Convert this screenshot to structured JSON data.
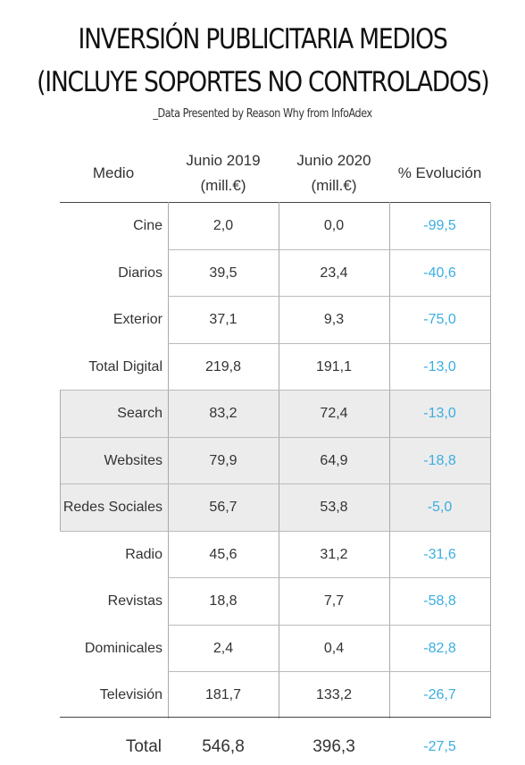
{
  "title_line1": "INVERSIÓN PUBLICITARIA MEDIOS",
  "title_line2": "(INCLUYE SOPORTES NO CONTROLADOS)",
  "subtitle": "_Data Presented by Reason Why from InfoAdex",
  "headers": {
    "medio": "Medio",
    "y2019_line1": "Junio 2019",
    "y2019_line2": "(mill.€)",
    "y2020_line1": "Junio 2020",
    "y2020_line2": "(mill.€)",
    "evolucion": "% Evolución"
  },
  "colors": {
    "evolution": "#3aaee0",
    "shaded_row": "#ececec"
  },
  "chart_data": {
    "type": "table",
    "title": "INVERSIÓN PUBLICITARIA MEDIOS (INCLUYE SOPORTES NO CONTROLADOS)",
    "columns": [
      "Medio",
      "Junio 2019 (mill.€)",
      "Junio 2020 (mill.€)",
      "% Evolución"
    ],
    "rows": [
      {
        "medio": "Cine",
        "v2019": "2,0",
        "v2020": "0,0",
        "evolucion": "-99,5",
        "shaded": false
      },
      {
        "medio": "Diarios",
        "v2019": "39,5",
        "v2020": "23,4",
        "evolucion": "-40,6",
        "shaded": false
      },
      {
        "medio": "Exterior",
        "v2019": "37,1",
        "v2020": "9,3",
        "evolucion": "-75,0",
        "shaded": false
      },
      {
        "medio": "Total Digital",
        "v2019": "219,8",
        "v2020": "191,1",
        "evolucion": "-13,0",
        "shaded": false
      },
      {
        "medio": "Search",
        "v2019": "83,2",
        "v2020": "72,4",
        "evolucion": "-13,0",
        "shaded": true
      },
      {
        "medio": "Websites",
        "v2019": "79,9",
        "v2020": "64,9",
        "evolucion": "-18,8",
        "shaded": true
      },
      {
        "medio": "Redes Sociales",
        "v2019": "56,7",
        "v2020": "53,8",
        "evolucion": "-5,0",
        "shaded": true
      },
      {
        "medio": "Radio",
        "v2019": "45,6",
        "v2020": "31,2",
        "evolucion": "-31,6",
        "shaded": false
      },
      {
        "medio": "Revistas",
        "v2019": "18,8",
        "v2020": "7,7",
        "evolucion": "-58,8",
        "shaded": false
      },
      {
        "medio": "Dominicales",
        "v2019": "2,4",
        "v2020": "0,4",
        "evolucion": "-82,8",
        "shaded": false
      },
      {
        "medio": "Televisión",
        "v2019": "181,7",
        "v2020": "133,2",
        "evolucion": "-26,7",
        "shaded": false
      }
    ],
    "total": {
      "label": "Total",
      "v2019": "546,8",
      "v2020": "396,3",
      "evolucion": "-27,5"
    }
  }
}
